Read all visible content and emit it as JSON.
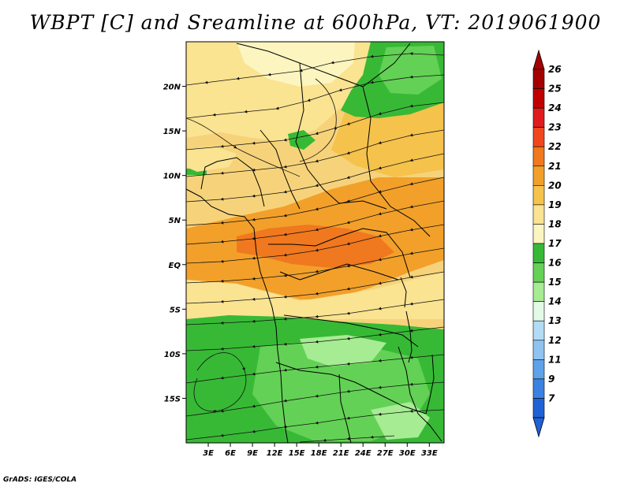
{
  "title": "WBPT [C] and Sreamline at 600hPa, VT: 2019061900",
  "credit": "GrADS: IGES/COLA",
  "map": {
    "lon_range": [
      0,
      35
    ],
    "lat_range": [
      -20,
      25
    ],
    "x_ticks": [
      {
        "value": 3,
        "label": "3E"
      },
      {
        "value": 6,
        "label": "6E"
      },
      {
        "value": 9,
        "label": "9E"
      },
      {
        "value": 12,
        "label": "12E"
      },
      {
        "value": 15,
        "label": "15E"
      },
      {
        "value": 18,
        "label": "18E"
      },
      {
        "value": 21,
        "label": "21E"
      },
      {
        "value": 24,
        "label": "24E"
      },
      {
        "value": 27,
        "label": "27E"
      },
      {
        "value": 30,
        "label": "30E"
      },
      {
        "value": 33,
        "label": "33E"
      }
    ],
    "y_ticks": [
      {
        "value": 20,
        "label": "20N"
      },
      {
        "value": 15,
        "label": "15N"
      },
      {
        "value": 10,
        "label": "10N"
      },
      {
        "value": 5,
        "label": "5N"
      },
      {
        "value": 0,
        "label": "EQ"
      },
      {
        "value": -5,
        "label": "5S"
      },
      {
        "value": -10,
        "label": "10S"
      },
      {
        "value": -15,
        "label": "15S"
      }
    ]
  },
  "colorbar": {
    "levels": [
      {
        "label": "26",
        "color": "#a50000"
      },
      {
        "label": "25",
        "color": "#c00000"
      },
      {
        "label": "24",
        "color": "#e01b1b"
      },
      {
        "label": "23",
        "color": "#f0461e"
      },
      {
        "label": "22",
        "color": "#f0781e"
      },
      {
        "label": "21",
        "color": "#f2a02a"
      },
      {
        "label": "20",
        "color": "#f5c24c"
      },
      {
        "label": "19",
        "color": "#fae391"
      },
      {
        "label": "18",
        "color": "#fcf5bf"
      },
      {
        "label": "17",
        "color": "#37b936"
      },
      {
        "label": "16",
        "color": "#63d155"
      },
      {
        "label": "15",
        "color": "#a6ec92"
      },
      {
        "label": "14",
        "color": "#e3fae6"
      },
      {
        "label": "13",
        "color": "#b2dcf5"
      },
      {
        "label": "12",
        "color": "#8fc4f2"
      },
      {
        "label": "11",
        "color": "#5ea2ea"
      },
      {
        "label": "9",
        "color": "#3a82e2"
      },
      {
        "label": "7",
        "color": "#1f62d6"
      }
    ]
  }
}
